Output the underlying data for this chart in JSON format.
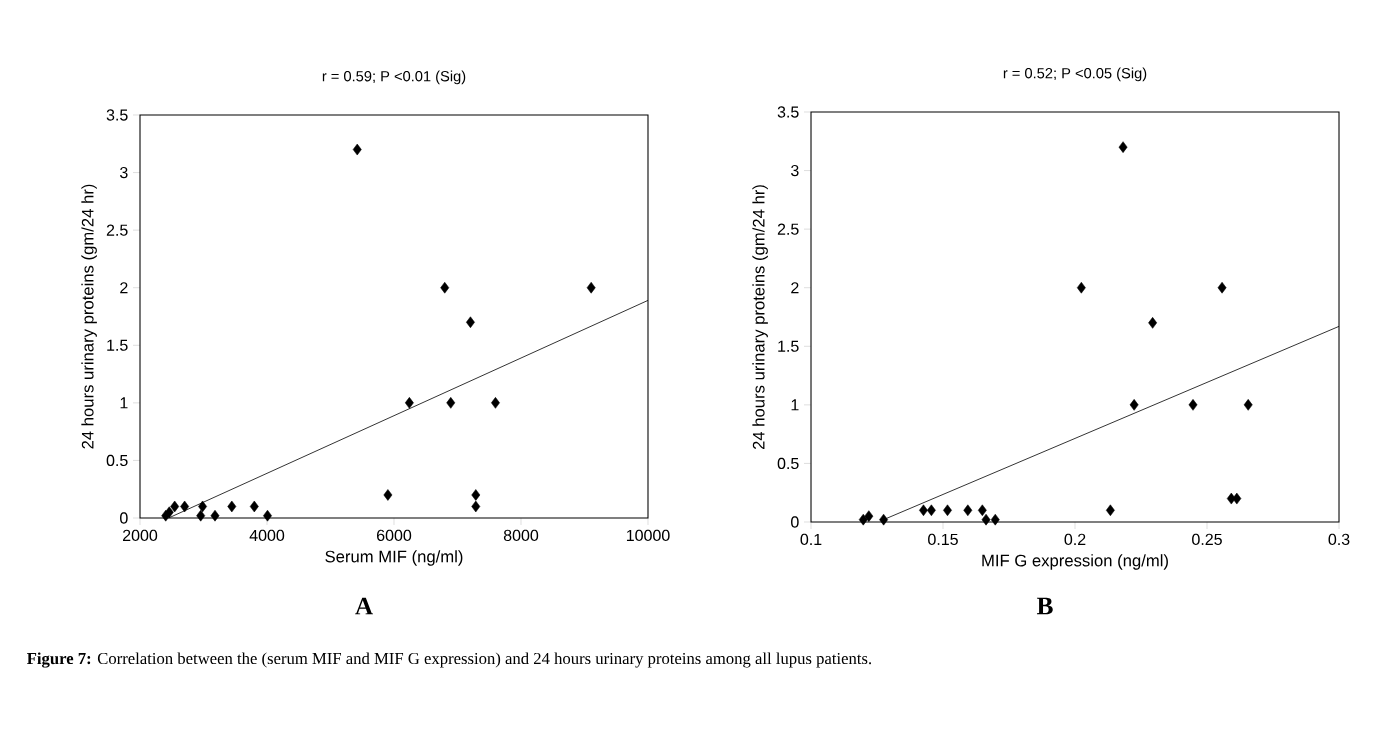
{
  "chart_data": [
    {
      "type": "scatter",
      "title": "r = 0.59; P <0.01 (Sig)",
      "xlabel": "Serum MIF (ng/ml)",
      "ylabel": "24 hours urinary proteins (gm/24 hr)",
      "marker": "diamond",
      "xlim": [
        2000,
        10000
      ],
      "ylim": [
        0,
        3.5
      ],
      "xticks": [
        2000,
        4000,
        6000,
        8000,
        10000
      ],
      "yticks": [
        0,
        0.5,
        1,
        1.5,
        2,
        2.5,
        3,
        3.5
      ],
      "series": [
        {
          "color": "#000000",
          "x": [
            2405,
            2461,
            2546,
            2703,
            2985,
            2956,
            3181,
            3446,
            3800,
            4008,
            5421,
            5904,
            6242,
            6799,
            6894,
            7204,
            7288,
            7288,
            7598,
            9105
          ],
          "values": [
            0.02,
            0.05,
            0.1,
            0.1,
            0.1,
            0.02,
            0.02,
            0.1,
            0.1,
            0.02,
            3.2,
            0.2,
            1,
            2,
            1,
            1.7,
            0.2,
            0.1,
            1,
            2
          ]
        },
        {
          "type": "line",
          "marker": "none",
          "color": "#000000",
          "x": [
            2450,
            10000
          ],
          "values": [
            0,
            1.89
          ]
        }
      ],
      "annotations": [
        "A",
        "**Figure 7:** Correlation between the (serum MIF and MIF G expression) and 24 hours urinary proteins among all lupus patients."
      ]
    },
    {
      "type": "scatter",
      "title": "r = 0.52; P <0.05 (Sig)",
      "xlabel": "MIF G expression (ng/ml)",
      "ylabel": "24 hours urinary proteins (gm/24 hr)",
      "marker": "diamond",
      "xlim": [
        0.1,
        0.3
      ],
      "ylim": [
        0,
        3.5
      ],
      "xticks": [
        0.1,
        0.15,
        0.2,
        0.25,
        0.3
      ],
      "yticks": [
        0,
        0.5,
        1,
        1.5,
        2,
        2.5,
        3,
        3.5
      ],
      "series": [
        {
          "color": "#000000",
          "x": [
            0.1198,
            0.1219,
            0.1275,
            0.1426,
            0.1456,
            0.1517,
            0.1594,
            0.1649,
            0.1663,
            0.1698,
            0.2024,
            0.2134,
            0.2182,
            0.2224,
            0.2294,
            0.2447,
            0.2557,
            0.2592,
            0.2613,
            0.2656
          ],
          "values": [
            0.02,
            0.05,
            0.02,
            0.1,
            0.1,
            0.1,
            0.1,
            0.1,
            0.02,
            0.02,
            2,
            0.1,
            3.2,
            1,
            1.7,
            1,
            2,
            0.2,
            0.2,
            1
          ]
        },
        {
          "type": "line",
          "marker": "none",
          "color": "#000000",
          "x": [
            0.1275,
            0.3
          ],
          "values": [
            0.02,
            1.67
          ]
        }
      ],
      "annotations": [
        "B"
      ]
    }
  ]
}
